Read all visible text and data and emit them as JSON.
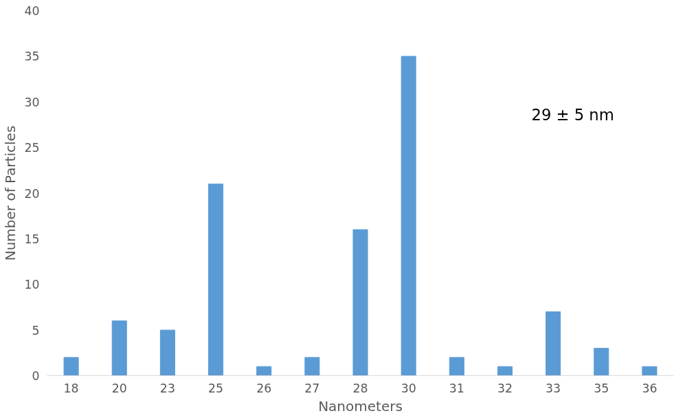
{
  "chart_data": {
    "type": "bar",
    "xlabel": "Nanometers",
    "ylabel": "Number of Particles",
    "categories": [
      "18",
      "20",
      "23",
      "25",
      "26",
      "27",
      "28",
      "30",
      "31",
      "32",
      "33",
      "35",
      "36"
    ],
    "values": [
      2,
      6,
      5,
      21,
      1,
      2,
      16,
      35,
      2,
      1,
      7,
      3,
      1
    ],
    "color": "#5b9bd5",
    "ylim": [
      0,
      40
    ],
    "yticks": [
      0,
      5,
      10,
      15,
      20,
      25,
      30,
      35,
      40
    ],
    "grid": false,
    "annotations": [
      "29 ± 5 nm"
    ]
  }
}
